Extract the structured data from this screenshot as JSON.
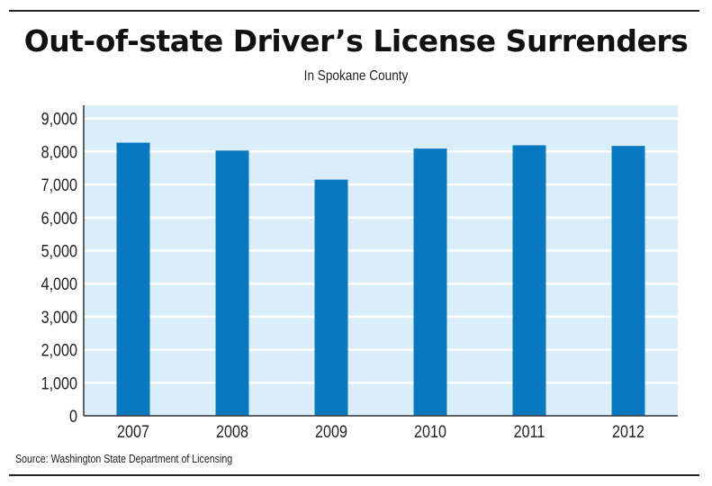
{
  "chart_data": {
    "type": "bar",
    "title": "Out-of-state Driver’s License Surrenders",
    "subtitle": "In Spokane County",
    "categories": [
      "2007",
      "2008",
      "2009",
      "2010",
      "2011",
      "2012"
    ],
    "values": [
      8270,
      8030,
      7150,
      8090,
      8190,
      8170
    ],
    "xlabel": "",
    "ylabel": "",
    "ylim": [
      0,
      9400
    ],
    "yticks": [
      0,
      1000,
      2000,
      3000,
      4000,
      5000,
      6000,
      7000,
      8000,
      9000
    ],
    "ytick_labels": [
      "0",
      "1,000",
      "2,000",
      "3,000",
      "4,000",
      "5,000",
      "6,000",
      "7,000",
      "8,000",
      "9,000"
    ],
    "grid": true,
    "source": "Source: Washington State Department of Licensing",
    "colors": {
      "bar": "#0a78c0",
      "plot_bg": "#d9eef9",
      "grid": "#ffffff"
    }
  }
}
